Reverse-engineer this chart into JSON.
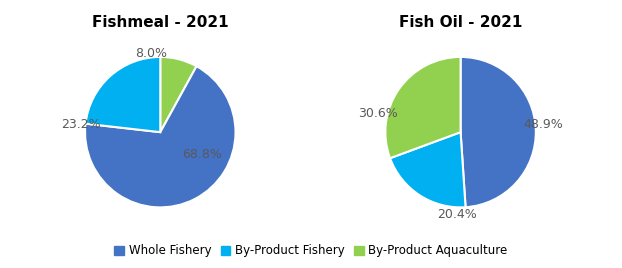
{
  "fishmeal_title": "Fishmeal - 2021",
  "fishoil_title": "Fish Oil - 2021",
  "fishmeal_values": [
    68.8,
    23.2,
    8.0
  ],
  "fishoil_values": [
    48.9,
    20.4,
    30.6
  ],
  "labels": [
    "Whole Fishery",
    "By-Product Fishery",
    "By-Product Aquaculture"
  ],
  "colors": [
    "#4472C4",
    "#00B0F0",
    "#92D050"
  ],
  "fishmeal_autopct_labels": [
    "68.8%",
    "23.2%",
    "8.0%"
  ],
  "fishoil_autopct_labels": [
    "48.9%",
    "20.4%",
    "30.6%"
  ],
  "background_color": "#ffffff",
  "title_fontsize": 11,
  "label_fontsize": 9,
  "legend_fontsize": 8.5
}
